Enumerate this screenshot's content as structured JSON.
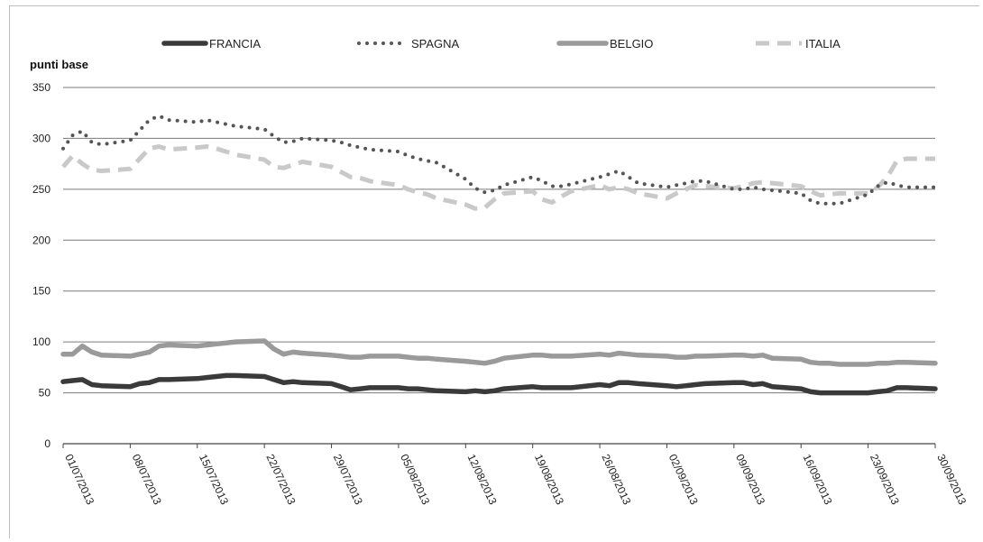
{
  "chart_data": {
    "type": "line",
    "ylabel": "punti base",
    "ylim": [
      0,
      350
    ],
    "yticks": [
      0,
      50,
      100,
      150,
      200,
      250,
      300,
      350
    ],
    "grid": true,
    "legend_position": "top",
    "date_labels": [
      "01/07/2013",
      "08/07/2013",
      "15/07/2013",
      "22/07/2013",
      "29/07/2013",
      "05/08/2013",
      "12/08/2013",
      "19/08/2013",
      "26/08/2013",
      "02/09/2013",
      "09/09/2013",
      "16/09/2013",
      "23/09/2013",
      "30/09/2013"
    ],
    "x": [
      "01/07/2013",
      "02/07/2013",
      "03/07/2013",
      "04/07/2013",
      "05/07/2013",
      "08/07/2013",
      "09/07/2013",
      "10/07/2013",
      "11/07/2013",
      "12/07/2013",
      "15/07/2013",
      "16/07/2013",
      "17/07/2013",
      "18/07/2013",
      "19/07/2013",
      "22/07/2013",
      "23/07/2013",
      "24/07/2013",
      "25/07/2013",
      "26/07/2013",
      "29/07/2013",
      "30/07/2013",
      "31/07/2013",
      "01/08/2013",
      "02/08/2013",
      "05/08/2013",
      "06/08/2013",
      "07/08/2013",
      "08/08/2013",
      "09/08/2013",
      "12/08/2013",
      "13/08/2013",
      "14/08/2013",
      "15/08/2013",
      "16/08/2013",
      "19/08/2013",
      "20/08/2013",
      "21/08/2013",
      "22/08/2013",
      "23/08/2013",
      "26/08/2013",
      "27/08/2013",
      "28/08/2013",
      "29/08/2013",
      "30/08/2013",
      "02/09/2013",
      "03/09/2013",
      "04/09/2013",
      "05/09/2013",
      "06/09/2013",
      "09/09/2013",
      "10/09/2013",
      "11/09/2013",
      "12/09/2013",
      "13/09/2013",
      "16/09/2013",
      "17/09/2013",
      "18/09/2013",
      "19/09/2013",
      "20/09/2013",
      "23/09/2013",
      "24/09/2013",
      "25/09/2013",
      "26/09/2013",
      "27/09/2013",
      "30/09/2013"
    ],
    "series": [
      {
        "name": "FRANCIA",
        "color": "#3a3a3a",
        "style": "solid-thick",
        "values": [
          61,
          62,
          63,
          58,
          57,
          56,
          59,
          60,
          63,
          63,
          64,
          65,
          66,
          67,
          67,
          66,
          63,
          60,
          61,
          60,
          59,
          56,
          53,
          54,
          55,
          55,
          54,
          54,
          53,
          52,
          51,
          52,
          51,
          52,
          54,
          56,
          55,
          55,
          55,
          55,
          58,
          57,
          60,
          60,
          59,
          57,
          56,
          57,
          58,
          59,
          60,
          60,
          58,
          59,
          56,
          54,
          51,
          50,
          50,
          50,
          50,
          51,
          52,
          55,
          55,
          54
        ]
      },
      {
        "name": "SPAGNA",
        "color": "#555555",
        "style": "dotted",
        "values": [
          290,
          303,
          307,
          296,
          294,
          298,
          308,
          318,
          322,
          318,
          316,
          318,
          316,
          314,
          312,
          309,
          302,
          296,
          297,
          300,
          298,
          296,
          293,
          291,
          289,
          287,
          283,
          280,
          278,
          276,
          260,
          251,
          247,
          249,
          254,
          262,
          258,
          253,
          253,
          255,
          262,
          265,
          268,
          262,
          256,
          252,
          254,
          256,
          258,
          258,
          250,
          250,
          252,
          250,
          249,
          246,
          239,
          236,
          236,
          236,
          245,
          253,
          257,
          254,
          252,
          252
        ]
      },
      {
        "name": "BELGIO",
        "color": "#9a9a9a",
        "style": "solid-thick",
        "values": [
          88,
          88,
          96,
          90,
          87,
          86,
          88,
          90,
          96,
          97,
          96,
          97,
          98,
          99,
          100,
          101,
          93,
          88,
          90,
          89,
          87,
          86,
          85,
          85,
          86,
          86,
          85,
          84,
          84,
          83,
          81,
          80,
          79,
          81,
          84,
          87,
          87,
          86,
          86,
          86,
          88,
          87,
          89,
          88,
          87,
          86,
          85,
          85,
          86,
          86,
          87,
          87,
          86,
          87,
          84,
          83,
          80,
          79,
          79,
          78,
          78,
          79,
          79,
          80,
          80,
          79
        ]
      },
      {
        "name": "ITALIA",
        "color": "#c9c9c9",
        "style": "dashed",
        "values": [
          272,
          283,
          275,
          269,
          268,
          270,
          280,
          290,
          292,
          289,
          291,
          292,
          290,
          287,
          284,
          279,
          272,
          271,
          274,
          277,
          272,
          267,
          262,
          261,
          258,
          254,
          250,
          247,
          245,
          241,
          235,
          231,
          232,
          240,
          246,
          248,
          240,
          237,
          243,
          248,
          254,
          250,
          252,
          250,
          246,
          241,
          246,
          250,
          254,
          253,
          251,
          253,
          256,
          257,
          256,
          253,
          248,
          244,
          245,
          246,
          246,
          252,
          262,
          278,
          280,
          280
        ]
      }
    ]
  }
}
